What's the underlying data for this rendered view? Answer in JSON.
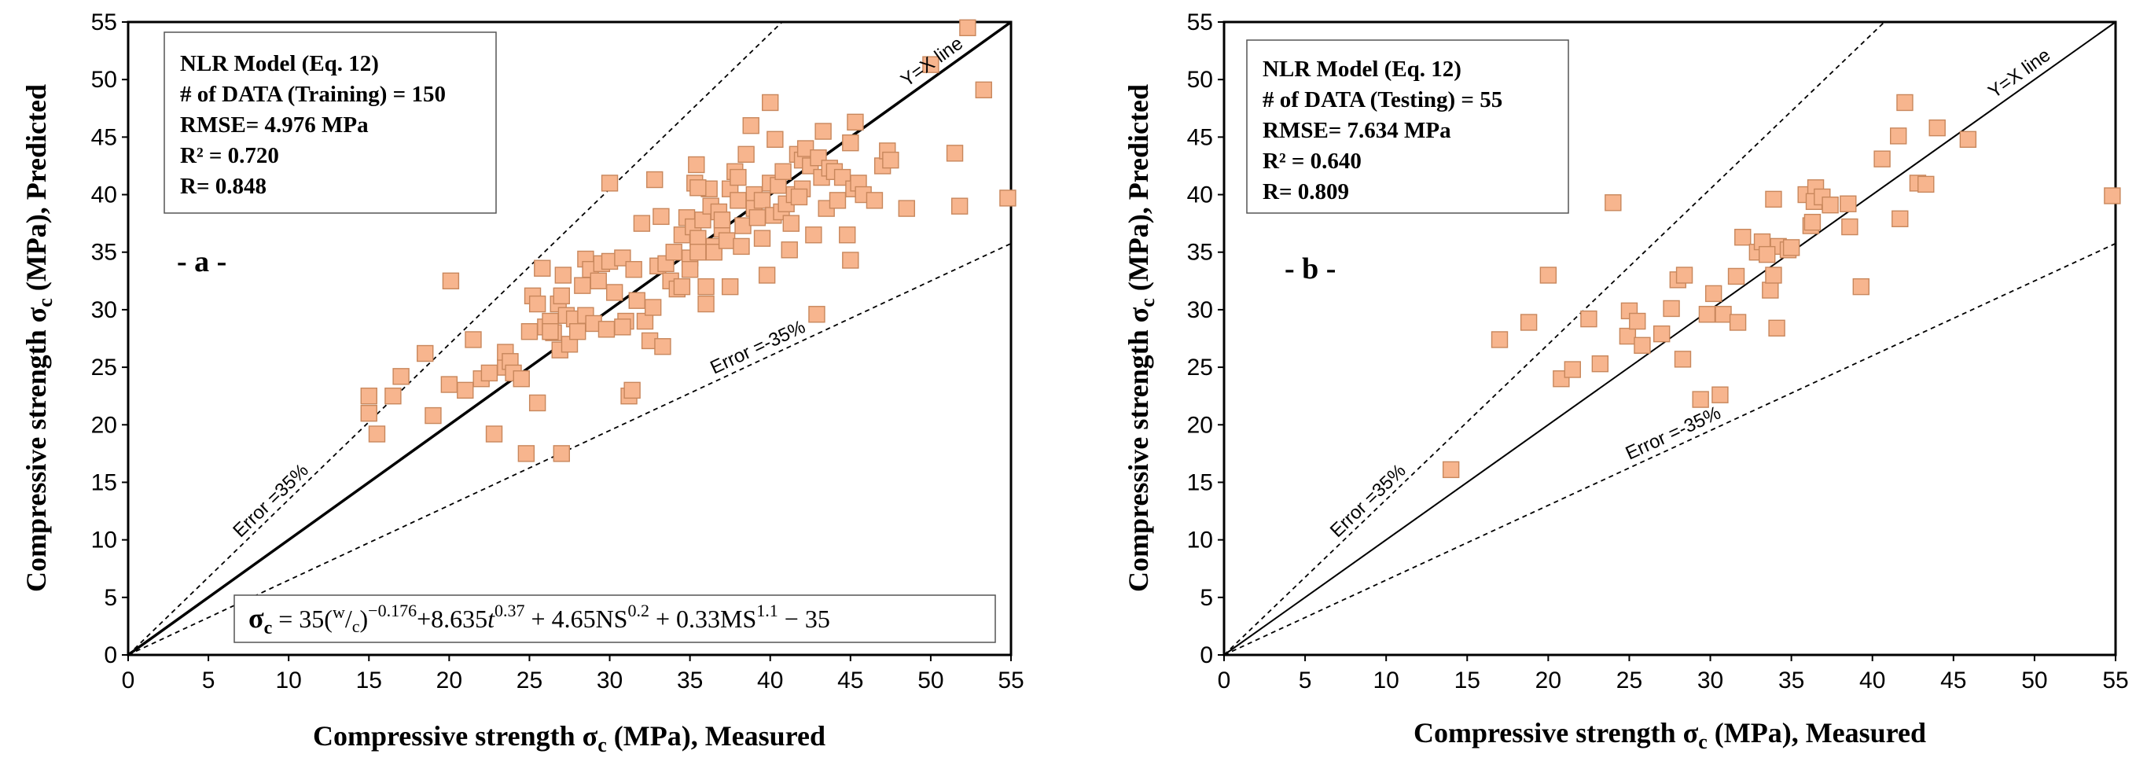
{
  "chart_data": [
    {
      "type": "scatter",
      "panel_label": "- a -",
      "xlabel": "Compressive strength σc (MPa), Measured",
      "ylabel": "Compressive strength σc (MPa), Predicted",
      "xlim": [
        0,
        55
      ],
      "ylim": [
        0,
        55
      ],
      "xticks": [
        "0",
        "5",
        "10",
        "15",
        "20",
        "25",
        "30",
        "35",
        "40",
        "45",
        "50",
        "55"
      ],
      "yticks": [
        "0",
        "5",
        "10",
        "15",
        "20",
        "25",
        "30",
        "35",
        "40",
        "45",
        "50",
        "55"
      ],
      "info_lines": [
        "NLR Model (Eq. 12)",
        "# of DATA (Training) = 150",
        "RMSE= 4.976 MPa",
        "R² = 0.720",
        "R= 0.848"
      ],
      "line_labels": {
        "yx": "Y=X line",
        "upper": "Error =35%",
        "lower": "Error =-35%"
      },
      "formula": "σc = 35(w/c)^-0.176 + 8.635t^0.37 + 4.65NS^0.2 + 0.33MS^1.1 − 35",
      "marker_color": "#F7B58E",
      "marker_edge": "#C8875C",
      "points": [
        [
          15.0,
          22.5
        ],
        [
          15.0,
          21.0
        ],
        [
          15.5,
          19.2
        ],
        [
          16.5,
          22.5
        ],
        [
          17.0,
          24.2
        ],
        [
          18.5,
          26.2
        ],
        [
          19.0,
          20.8
        ],
        [
          20.0,
          23.5
        ],
        [
          20.1,
          32.5
        ],
        [
          21.0,
          23.0
        ],
        [
          21.5,
          27.4
        ],
        [
          22.0,
          24.0
        ],
        [
          22.5,
          24.5
        ],
        [
          22.8,
          19.2
        ],
        [
          23.5,
          25.0
        ],
        [
          23.5,
          26.3
        ],
        [
          23.8,
          25.5
        ],
        [
          24.0,
          24.5
        ],
        [
          24.5,
          24.0
        ],
        [
          24.8,
          17.5
        ],
        [
          25.0,
          28.1
        ],
        [
          25.2,
          31.2
        ],
        [
          25.5,
          21.9
        ],
        [
          25.5,
          30.5
        ],
        [
          25.8,
          33.6
        ],
        [
          26.0,
          28.5
        ],
        [
          26.3,
          29.0
        ],
        [
          26.5,
          28.0
        ],
        [
          26.8,
          30.5
        ],
        [
          26.9,
          26.5
        ],
        [
          27.0,
          17.5
        ],
        [
          27.0,
          31.2
        ],
        [
          27.1,
          33.0
        ],
        [
          27.3,
          29.5
        ],
        [
          27.5,
          27.0
        ],
        [
          27.8,
          29.2
        ],
        [
          28.0,
          28.1
        ],
        [
          28.3,
          32.1
        ],
        [
          28.5,
          34.4
        ],
        [
          28.5,
          29.5
        ],
        [
          28.8,
          33.5
        ],
        [
          29.0,
          28.8
        ],
        [
          29.3,
          32.5
        ],
        [
          29.5,
          34.0
        ],
        [
          29.8,
          28.3
        ],
        [
          30.0,
          34.2
        ],
        [
          30.0,
          41.0
        ],
        [
          30.3,
          31.5
        ],
        [
          30.8,
          34.5
        ],
        [
          31.0,
          29.0
        ],
        [
          31.2,
          22.5
        ],
        [
          31.4,
          23.0
        ],
        [
          31.5,
          33.5
        ],
        [
          31.7,
          30.8
        ],
        [
          32.0,
          37.5
        ],
        [
          32.2,
          29.0
        ],
        [
          32.5,
          27.3
        ],
        [
          32.7,
          30.2
        ],
        [
          32.8,
          41.3
        ],
        [
          33.0,
          33.8
        ],
        [
          33.2,
          38.1
        ],
        [
          33.3,
          26.8
        ],
        [
          33.5,
          34.0
        ],
        [
          33.8,
          32.5
        ],
        [
          34.0,
          35.0
        ],
        [
          34.2,
          31.8
        ],
        [
          34.5,
          36.5
        ],
        [
          34.5,
          32.0
        ],
        [
          34.8,
          38.0
        ],
        [
          35.0,
          34.5
        ],
        [
          35.0,
          33.5
        ],
        [
          35.2,
          37.2
        ],
        [
          35.3,
          41.0
        ],
        [
          35.4,
          42.6
        ],
        [
          35.5,
          36.2
        ],
        [
          35.5,
          35.0
        ],
        [
          35.8,
          37.8
        ],
        [
          36.0,
          32.0
        ],
        [
          36.0,
          30.5
        ],
        [
          36.2,
          40.5
        ],
        [
          36.3,
          39.0
        ],
        [
          36.5,
          35.5
        ],
        [
          36.5,
          35.0
        ],
        [
          36.8,
          38.5
        ],
        [
          37.0,
          37.0
        ],
        [
          37.3,
          36.0
        ],
        [
          37.5,
          32.0
        ],
        [
          37.5,
          40.5
        ],
        [
          37.8,
          42.0
        ],
        [
          38.0,
          41.5
        ],
        [
          38.0,
          39.5
        ],
        [
          38.2,
          35.5
        ],
        [
          38.3,
          37.3
        ],
        [
          38.5,
          43.5
        ],
        [
          38.8,
          46.0
        ],
        [
          39.0,
          40.0
        ],
        [
          39.0,
          38.8
        ],
        [
          39.2,
          38.0
        ],
        [
          39.5,
          39.5
        ],
        [
          39.5,
          36.2
        ],
        [
          39.8,
          33.0
        ],
        [
          40.0,
          41.0
        ],
        [
          40.0,
          48.0
        ],
        [
          40.2,
          38.2
        ],
        [
          40.3,
          44.8
        ],
        [
          40.5,
          40.8
        ],
        [
          40.7,
          38.5
        ],
        [
          40.8,
          42.0
        ],
        [
          41.0,
          39.2
        ],
        [
          41.2,
          35.2
        ],
        [
          41.3,
          37.5
        ],
        [
          41.5,
          40.0
        ],
        [
          41.7,
          43.5
        ],
        [
          42.0,
          40.5
        ],
        [
          42.0,
          43.0
        ],
        [
          42.2,
          44.0
        ],
        [
          42.5,
          42.5
        ],
        [
          42.7,
          36.5
        ],
        [
          42.9,
          29.6
        ],
        [
          43.0,
          43.2
        ],
        [
          43.2,
          41.5
        ],
        [
          43.3,
          45.5
        ],
        [
          43.5,
          38.8
        ],
        [
          43.7,
          42.3
        ],
        [
          44.0,
          42.0
        ],
        [
          44.2,
          39.5
        ],
        [
          44.5,
          41.5
        ],
        [
          44.8,
          36.5
        ],
        [
          45.0,
          44.5
        ],
        [
          45.0,
          34.3
        ],
        [
          45.2,
          40.5
        ],
        [
          45.3,
          46.3
        ],
        [
          45.5,
          41.0
        ],
        [
          45.8,
          40.0
        ],
        [
          46.5,
          39.5
        ],
        [
          47.0,
          42.5
        ],
        [
          47.3,
          43.8
        ],
        [
          47.5,
          43.0
        ],
        [
          48.5,
          38.8
        ],
        [
          50.0,
          51.3
        ],
        [
          51.5,
          43.6
        ],
        [
          51.8,
          39.0
        ],
        [
          52.3,
          54.5
        ],
        [
          53.3,
          49.1
        ],
        [
          54.8,
          39.7
        ],
        [
          35.5,
          40.6
        ],
        [
          41.8,
          39.8
        ],
        [
          30.8,
          28.5
        ],
        [
          26.3,
          28.1
        ],
        [
          37.0,
          37.8
        ]
      ]
    },
    {
      "type": "scatter",
      "panel_label": "- b -",
      "xlabel": "Compressive strength σc (MPa), Measured",
      "ylabel": "Compressive strength σc (MPa), Predicted",
      "xlim": [
        0,
        55
      ],
      "ylim": [
        0,
        55
      ],
      "xticks": [
        "0",
        "5",
        "10",
        "15",
        "20",
        "25",
        "30",
        "35",
        "40",
        "45",
        "50",
        "55"
      ],
      "yticks": [
        "0",
        "5",
        "10",
        "15",
        "20",
        "25",
        "30",
        "35",
        "40",
        "45",
        "50",
        "55"
      ],
      "info_lines": [
        "NLR Model (Eq. 12)",
        "# of DATA (Testing) = 55",
        "RMSE= 7.634 MPa",
        "R² = 0.640",
        "R= 0.809"
      ],
      "line_labels": {
        "yx": "Y=X line",
        "upper": "Error =35%",
        "lower": "Error =-35%"
      },
      "marker_color": "#F7B58E",
      "marker_edge": "#C8875C",
      "points": [
        [
          14.0,
          16.1
        ],
        [
          17.0,
          27.4
        ],
        [
          18.8,
          28.9
        ],
        [
          20.0,
          33.0
        ],
        [
          20.8,
          24.0
        ],
        [
          21.5,
          24.8
        ],
        [
          22.5,
          29.2
        ],
        [
          23.2,
          25.3
        ],
        [
          24.0,
          39.3
        ],
        [
          24.9,
          27.7
        ],
        [
          25.0,
          29.9
        ],
        [
          25.5,
          29.0
        ],
        [
          25.8,
          26.9
        ],
        [
          27.0,
          27.9
        ],
        [
          27.6,
          30.1
        ],
        [
          28.0,
          32.6
        ],
        [
          28.3,
          25.7
        ],
        [
          28.4,
          33.0
        ],
        [
          29.4,
          22.2
        ],
        [
          29.8,
          29.6
        ],
        [
          30.2,
          31.4
        ],
        [
          30.6,
          22.6
        ],
        [
          30.8,
          29.6
        ],
        [
          31.6,
          32.9
        ],
        [
          31.7,
          28.9
        ],
        [
          32.0,
          36.3
        ],
        [
          32.9,
          35.0
        ],
        [
          33.2,
          35.9
        ],
        [
          33.7,
          31.7
        ],
        [
          33.9,
          33.0
        ],
        [
          33.9,
          39.6
        ],
        [
          34.1,
          28.4
        ],
        [
          34.2,
          35.5
        ],
        [
          34.8,
          35.2
        ],
        [
          35.0,
          35.4
        ],
        [
          35.9,
          40.0
        ],
        [
          36.2,
          37.3
        ],
        [
          36.5,
          40.6
        ],
        [
          36.4,
          39.4
        ],
        [
          36.9,
          39.8
        ],
        [
          37.4,
          39.1
        ],
        [
          38.5,
          39.2
        ],
        [
          38.6,
          37.2
        ],
        [
          39.3,
          32.0
        ],
        [
          40.6,
          43.1
        ],
        [
          41.6,
          45.1
        ],
        [
          41.7,
          37.9
        ],
        [
          42.0,
          48.0
        ],
        [
          42.8,
          41.0
        ],
        [
          43.3,
          40.9
        ],
        [
          44.0,
          45.8
        ],
        [
          45.9,
          44.8
        ],
        [
          54.8,
          39.9
        ],
        [
          36.3,
          37.6
        ],
        [
          33.5,
          34.8
        ]
      ]
    }
  ]
}
